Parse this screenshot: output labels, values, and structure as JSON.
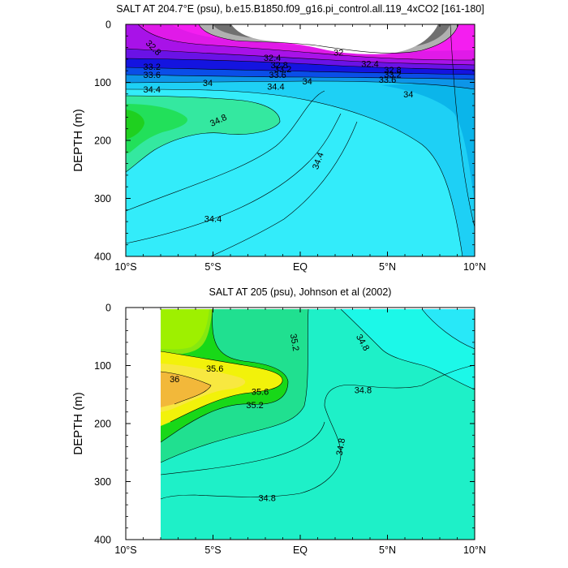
{
  "chart_data": [
    {
      "type": "contour",
      "title": "SALT AT 204.7°E (psu), b.e15.B1850.f09_g16.pi_control.all.119_4xCO2 [161-180]",
      "ylabel": "DEPTH (m)",
      "xlim": [
        -10,
        10
      ],
      "ylim": [
        400,
        0
      ],
      "x_ticks": [
        -10,
        -5,
        0,
        5,
        10
      ],
      "x_tick_labels": [
        "10°S",
        "5°S",
        "EQ",
        "5°N",
        "10°N"
      ],
      "y_ticks": [
        0,
        100,
        200,
        300,
        400
      ],
      "y_tick_labels": [
        "0",
        "100",
        "200",
        "300",
        "400"
      ],
      "contour_levels": [
        32,
        32.4,
        32.8,
        33.2,
        33.6,
        34,
        34.4,
        34.8,
        35.2,
        35.6,
        36
      ],
      "contour_labels": [
        {
          "text": "32.8",
          "x": -8.4,
          "y": 40,
          "angle": 45
        },
        {
          "text": "33.2",
          "x": -8.5,
          "y": 73
        },
        {
          "text": "33.6",
          "x": -8.5,
          "y": 87
        },
        {
          "text": "34.4",
          "x": -8.5,
          "y": 112
        },
        {
          "text": "34",
          "x": -5.3,
          "y": 101
        },
        {
          "text": "34.8",
          "x": -4.7,
          "y": 165,
          "angle": -25
        },
        {
          "text": "32.4",
          "x": -1.6,
          "y": 57
        },
        {
          "text": "32.8",
          "x": -1.2,
          "y": 70
        },
        {
          "text": "33.2",
          "x": -1.0,
          "y": 77
        },
        {
          "text": "33.6",
          "x": -1.3,
          "y": 87
        },
        {
          "text": "34.4",
          "x": -1.4,
          "y": 107
        },
        {
          "text": "34",
          "x": 0.4,
          "y": 98
        },
        {
          "text": "32",
          "x": 2.2,
          "y": 48
        },
        {
          "text": "32.4",
          "x": 4.0,
          "y": 68
        },
        {
          "text": "32.8",
          "x": 5.3,
          "y": 78
        },
        {
          "text": "33.2",
          "x": 5.3,
          "y": 86
        },
        {
          "text": "33.6",
          "x": 5.0,
          "y": 95
        },
        {
          "text": "34",
          "x": 6.2,
          "y": 120
        },
        {
          "text": "34.4",
          "x": 1.0,
          "y": 235,
          "angle": -70
        },
        {
          "text": "34.4",
          "x": -5.0,
          "y": 335
        }
      ]
    },
    {
      "type": "contour",
      "title": "SALT AT 205 (psu), Johnson et al (2002)",
      "ylabel": "DEPTH (m)",
      "xlim": [
        -10,
        10
      ],
      "ylim": [
        400,
        0
      ],
      "x_ticks": [
        -10,
        -5,
        0,
        5,
        10
      ],
      "x_tick_labels": [
        "10°S",
        "5°S",
        "EQ",
        "5°N",
        "10°N"
      ],
      "y_ticks": [
        0,
        100,
        200,
        300,
        400
      ],
      "y_tick_labels": [
        "0",
        "100",
        "200",
        "300",
        "400"
      ],
      "data_x_range": [
        -8,
        10
      ],
      "contour_levels": [
        34.4,
        34.8,
        35.2,
        35.6,
        36
      ],
      "contour_labels": [
        {
          "text": "35.2",
          "x": -0.3,
          "y": 60,
          "angle": 80
        },
        {
          "text": "34.8",
          "x": 3.6,
          "y": 60,
          "angle": 60
        },
        {
          "text": "35.6",
          "x": -4.9,
          "y": 105
        },
        {
          "text": "36",
          "x": -7.2,
          "y": 123
        },
        {
          "text": "35.6",
          "x": -2.3,
          "y": 145
        },
        {
          "text": "35.2",
          "x": -2.6,
          "y": 168
        },
        {
          "text": "34.8",
          "x": 3.6,
          "y": 142
        },
        {
          "text": "34.8",
          "x": 2.3,
          "y": 240,
          "angle": -80
        },
        {
          "text": "34.8",
          "x": -1.9,
          "y": 328
        }
      ]
    }
  ]
}
